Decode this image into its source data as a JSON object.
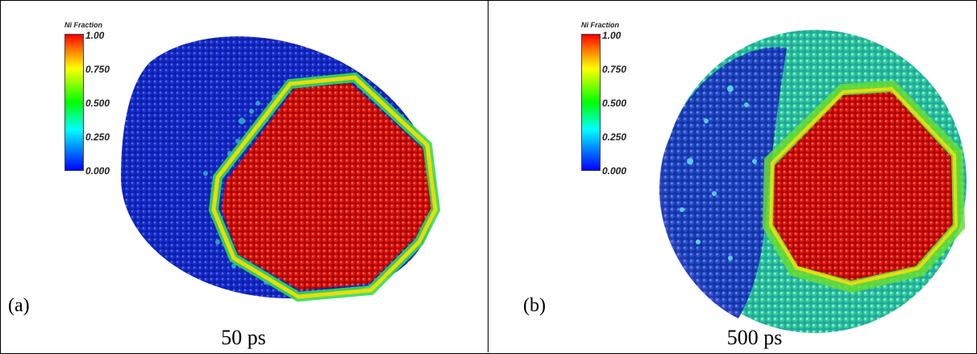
{
  "panels": [
    {
      "tag": "(a)",
      "time": "50 ps",
      "colorbar": {
        "title": "Ni Fraction",
        "ticks": [
          "1.00",
          "0.750",
          "0.500",
          "0.250",
          "0.000"
        ],
        "colors": [
          "#ff0000",
          "#ffff00",
          "#00ff00",
          "#00ffff",
          "#0000ff"
        ]
      }
    },
    {
      "tag": "(b)",
      "time": "500 ps",
      "colorbar": {
        "title": "Ni Fraction",
        "ticks": [
          "1.00",
          "0.750",
          "0.500",
          "0.250",
          "0.000"
        ],
        "colors": [
          "#ff0000",
          "#ffff00",
          "#00ff00",
          "#00ffff",
          "#0000ff"
        ]
      }
    }
  ]
}
